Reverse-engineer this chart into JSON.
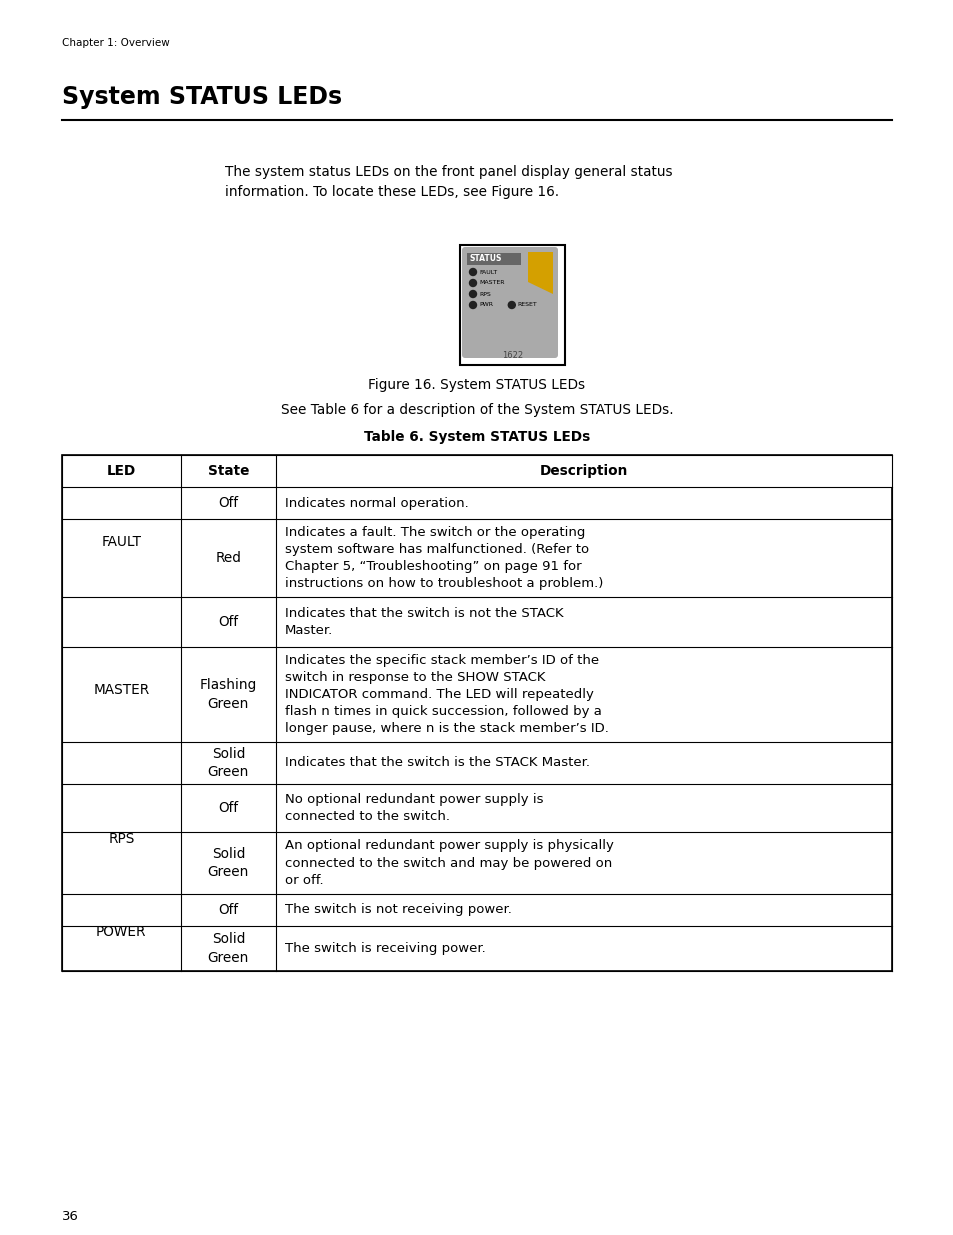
{
  "page_width": 9.54,
  "page_height": 12.35,
  "bg_color": "#ffffff",
  "chapter_label": "Chapter 1: Overview",
  "title": "System STATUS LEDs",
  "intro_text": "The system status LEDs on the front panel display general status\ninformation. To locate these LEDs, see Figure 16.",
  "figure_caption": "Figure 16. System STATUS LEDs",
  "see_table_text": "See Table 6 for a description of the System STATUS LEDs.",
  "table_title": "Table 6. System STATUS LEDs",
  "table_headers": [
    "LED",
    "State",
    "Description"
  ],
  "table_rows": [
    [
      "FAULT",
      "Off",
      "Indicates normal operation."
    ],
    [
      "",
      "Red",
      "Indicates a fault. The switch or the operating\nsystem software has malfunctioned. (Refer to\nChapter 5, “Troubleshooting” on page 91 for\ninstructions on how to troubleshoot a problem.)"
    ],
    [
      "",
      "Off",
      "Indicates that the switch is not the STACK\nMaster."
    ],
    [
      "MASTER",
      "Flashing\nGreen",
      "Indicates the specific stack member’s ID of the\nswitch in response to the SHOW STACK\nINDICATOR command. The LED will repeatedly\nflash n times in quick succession, followed by a\nlonger pause, where n is the stack member’s ID."
    ],
    [
      "",
      "Solid\nGreen",
      "Indicates that the switch is the STACK Master."
    ],
    [
      "RPS",
      "Off",
      "No optional redundant power supply is\nconnected to the switch."
    ],
    [
      "",
      "Solid\nGreen",
      "An optional redundant power supply is physically\nconnected to the switch and may be powered on\nor off."
    ],
    [
      "POWER",
      "Off",
      "The switch is not receiving power."
    ],
    [
      "",
      "Solid\nGreen",
      "The switch is receiving power."
    ]
  ],
  "page_number": "36",
  "led_labels": [
    "FAULT",
    "MASTER",
    "RPS",
    "PWR"
  ],
  "reset_label": "RESET",
  "status_label": "STATUS",
  "figure_num": "1622",
  "led_groups": {
    "FAULT": [
      0,
      1
    ],
    "MASTER": [
      2,
      3,
      4
    ],
    "RPS": [
      5,
      6
    ],
    "POWER": [
      7,
      8
    ]
  }
}
